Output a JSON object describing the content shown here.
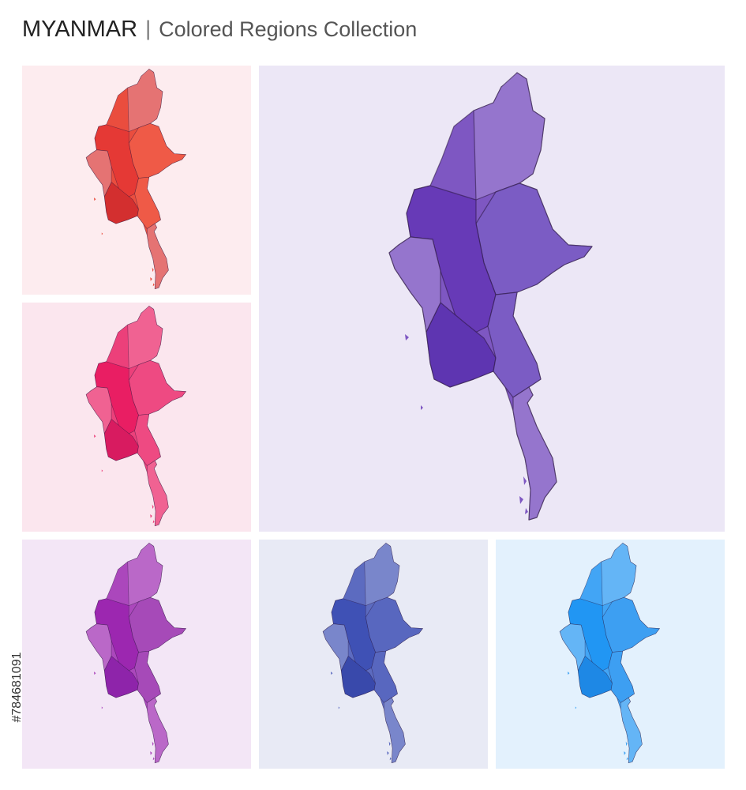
{
  "header": {
    "title": "MYANMAR",
    "separator": "|",
    "subtitle": "Colored Regions Collection"
  },
  "watermark_id": "#784681091"
}
